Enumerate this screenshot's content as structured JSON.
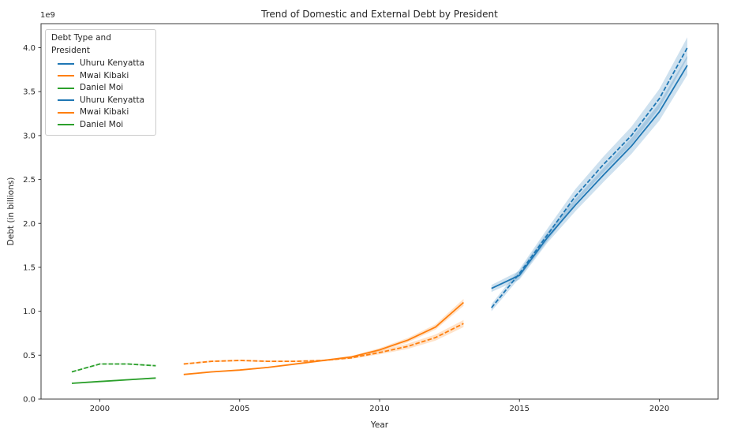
{
  "figure": {
    "title": "Trend of Domestic and External Debt by President"
  },
  "legend": {
    "title": "Debt Type and President",
    "items": [
      {
        "label": "Uhuru Kenyatta",
        "color": "#1f77b4"
      },
      {
        "label": "Mwai Kibaki",
        "color": "#ff7f0e"
      },
      {
        "label": "Daniel Moi",
        "color": "#2ca02c"
      },
      {
        "label": "Uhuru Kenyatta",
        "color": "#1f77b4"
      },
      {
        "label": "Mwai Kibaki",
        "color": "#ff7f0e"
      },
      {
        "label": "Daniel Moi",
        "color": "#2ca02c"
      }
    ]
  },
  "chart_data": {
    "type": "line",
    "title": "Trend of Domestic and External Debt by President",
    "xlabel": "Year",
    "ylabel": "Debt (in billions)",
    "offset_text": "1e9",
    "grid": false,
    "legend_position": "upper-left",
    "xlim": [
      1997.9,
      2022.1
    ],
    "ylim": [
      0,
      4.274
    ],
    "x_ticks": [
      2000,
      2005,
      2010,
      2015,
      2020
    ],
    "y_ticks": [
      0.0,
      0.5,
      1.0,
      1.5,
      2.0,
      2.5,
      3.0,
      3.5,
      4.0
    ],
    "y_unit": "1e9 (billions)",
    "series": [
      {
        "president": "Daniel Moi",
        "debt_type": "Domestic",
        "style": "solid",
        "color": "#2ca02c",
        "years": [
          1999,
          2000,
          2001,
          2002
        ],
        "values_billions": [
          0.18,
          0.2,
          0.22,
          0.24
        ],
        "ci_billions": [
          0.008,
          0.008,
          0.008,
          0.008
        ]
      },
      {
        "president": "Daniel Moi",
        "debt_type": "External",
        "style": "dashed",
        "color": "#2ca02c",
        "years": [
          1999,
          2000,
          2001,
          2002
        ],
        "values_billions": [
          0.31,
          0.4,
          0.4,
          0.38
        ],
        "ci_billions": [
          0.008,
          0.008,
          0.008,
          0.008
        ]
      },
      {
        "president": "Mwai Kibaki",
        "debt_type": "Domestic",
        "style": "solid",
        "color": "#ff7f0e",
        "years": [
          2003,
          2004,
          2005,
          2006,
          2007,
          2008,
          2009,
          2010,
          2011,
          2012,
          2013
        ],
        "values_billions": [
          0.28,
          0.31,
          0.33,
          0.36,
          0.4,
          0.44,
          0.48,
          0.56,
          0.67,
          0.82,
          1.1
        ],
        "ci_billions": [
          0.008,
          0.008,
          0.008,
          0.008,
          0.01,
          0.01,
          0.012,
          0.02,
          0.025,
          0.03,
          0.04
        ]
      },
      {
        "president": "Mwai Kibaki",
        "debt_type": "External",
        "style": "dashed",
        "color": "#ff7f0e",
        "years": [
          2003,
          2004,
          2005,
          2006,
          2007,
          2008,
          2009,
          2010,
          2011,
          2012,
          2013
        ],
        "values_billions": [
          0.4,
          0.43,
          0.44,
          0.43,
          0.43,
          0.44,
          0.47,
          0.53,
          0.6,
          0.7,
          0.86
        ],
        "ci_billions": [
          0.01,
          0.01,
          0.01,
          0.01,
          0.01,
          0.01,
          0.012,
          0.02,
          0.03,
          0.035,
          0.04
        ]
      },
      {
        "president": "Uhuru Kenyatta",
        "debt_type": "Domestic",
        "style": "solid",
        "color": "#1f77b4",
        "years": [
          2014,
          2015,
          2016,
          2017,
          2018,
          2019,
          2020,
          2021
        ],
        "values_billions": [
          1.26,
          1.41,
          1.84,
          2.21,
          2.55,
          2.88,
          3.27,
          3.8
        ],
        "ci_billions": [
          0.04,
          0.05,
          0.06,
          0.07,
          0.08,
          0.09,
          0.1,
          0.11
        ]
      },
      {
        "president": "Uhuru Kenyatta",
        "debt_type": "External",
        "style": "dashed",
        "color": "#1f77b4",
        "years": [
          2014,
          2015,
          2016,
          2017,
          2018,
          2019,
          2020,
          2021
        ],
        "values_billions": [
          1.04,
          1.43,
          1.87,
          2.31,
          2.67,
          3.0,
          3.42,
          4.0
        ],
        "ci_billions": [
          0.04,
          0.05,
          0.07,
          0.08,
          0.09,
          0.1,
          0.11,
          0.12
        ]
      }
    ]
  }
}
